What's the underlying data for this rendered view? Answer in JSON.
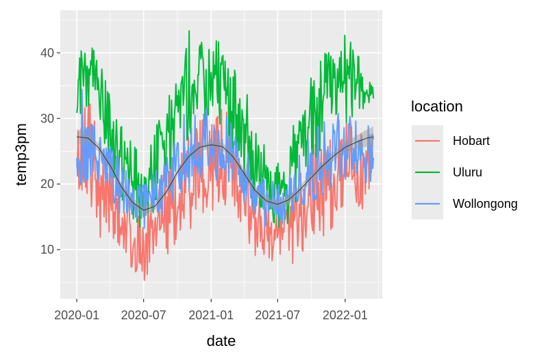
{
  "chart_data": {
    "type": "line",
    "xlabel": "date",
    "ylabel": "temp3pm",
    "x_ticks": [
      "2020-01",
      "2020-07",
      "2021-01",
      "2021-07",
      "2022-01"
    ],
    "y_ticks": [
      10,
      20,
      30,
      40
    ],
    "x_range": [
      "2019-11-17",
      "2022-04-12"
    ],
    "ylim": [
      2.5,
      46.5
    ],
    "grid": true,
    "legend": {
      "title": "location",
      "position": "right",
      "entries": [
        "Hobart",
        "Uluru",
        "Wollongong"
      ]
    },
    "series": [
      {
        "name": "Hobart",
        "color": "#F8766D",
        "x": [
          "2020-01-01",
          "2020-02-01",
          "2020-03-01",
          "2020-04-01",
          "2020-05-01",
          "2020-06-01",
          "2020-07-01",
          "2020-08-01",
          "2020-09-01",
          "2020-10-01",
          "2020-11-01",
          "2020-12-01",
          "2021-01-01",
          "2021-02-01",
          "2021-03-01",
          "2021-04-01",
          "2021-05-01",
          "2021-06-01",
          "2021-07-01",
          "2021-08-01",
          "2021-09-01",
          "2021-10-01",
          "2021-11-01",
          "2021-12-01",
          "2022-01-01",
          "2022-02-01",
          "2022-03-01"
        ],
        "values": [
          21,
          22,
          20,
          18,
          15,
          13,
          12,
          12,
          15,
          17,
          19,
          20,
          22,
          23,
          21,
          18,
          15,
          13,
          12,
          13,
          15,
          17,
          18,
          20,
          22,
          21,
          20
        ],
        "min": [
          17,
          14,
          12,
          10,
          9,
          7,
          5,
          7,
          9,
          11,
          12,
          15,
          16,
          15,
          13,
          11,
          9,
          8,
          8,
          7,
          9,
          10,
          11,
          13,
          15,
          15,
          17
        ],
        "max": [
          31,
          34,
          30,
          27,
          22,
          18,
          17,
          19,
          23,
          27,
          30,
          30,
          32,
          33,
          29,
          25,
          20,
          17,
          17,
          19,
          23,
          26,
          28,
          30,
          31,
          31,
          28
        ]
      },
      {
        "name": "Uluru",
        "color": "#00BA38",
        "x": [
          "2020-01-01",
          "2020-02-01",
          "2020-03-01",
          "2020-04-01",
          "2020-05-01",
          "2020-06-01",
          "2020-07-01",
          "2020-08-01",
          "2020-09-01",
          "2020-10-01",
          "2020-11-01",
          "2020-12-01",
          "2021-01-01",
          "2021-02-01",
          "2021-03-01",
          "2021-04-01",
          "2021-05-01",
          "2021-06-01",
          "2021-07-01",
          "2021-08-01",
          "2021-09-01",
          "2021-10-01",
          "2021-11-01",
          "2021-12-01",
          "2022-01-01",
          "2022-02-01",
          "2022-03-01"
        ],
        "values": [
          38,
          37,
          34,
          29,
          24,
          20,
          19,
          22,
          27,
          32,
          35,
          36,
          37,
          36,
          33,
          29,
          23,
          19,
          18,
          21,
          26,
          31,
          34,
          36,
          38,
          36,
          34
        ],
        "min": [
          28,
          30,
          26,
          21,
          16,
          14,
          13,
          15,
          19,
          24,
          27,
          28,
          28,
          27,
          24,
          20,
          15,
          13,
          12,
          14,
          18,
          22,
          26,
          28,
          29,
          30,
          32
        ],
        "max": [
          41,
          42,
          39,
          35,
          31,
          26,
          25,
          29,
          34,
          38,
          44,
          42,
          43,
          41,
          39,
          35,
          30,
          25,
          24,
          28,
          33,
          37,
          40,
          42,
          45,
          41,
          38
        ]
      },
      {
        "name": "Wollongong",
        "color": "#619CFF",
        "x": [
          "2020-01-01",
          "2020-02-01",
          "2020-03-01",
          "2020-04-01",
          "2020-05-01",
          "2020-06-01",
          "2020-07-01",
          "2020-08-01",
          "2020-09-01",
          "2020-10-01",
          "2020-11-01",
          "2020-12-01",
          "2021-01-01",
          "2021-02-01",
          "2021-03-01",
          "2021-04-01",
          "2021-05-01",
          "2021-06-01",
          "2021-07-01",
          "2021-08-01",
          "2021-09-01",
          "2021-10-01",
          "2021-11-01",
          "2021-12-01",
          "2022-01-01",
          "2022-02-01",
          "2022-03-01"
        ],
        "values": [
          25,
          25,
          24,
          22,
          19,
          17,
          17,
          18,
          20,
          22,
          23,
          24,
          25,
          25,
          24,
          21,
          19,
          17,
          16,
          18,
          19,
          21,
          23,
          24,
          25,
          25,
          24
        ],
        "min": [
          20,
          20,
          19,
          17,
          15,
          14,
          13,
          14,
          16,
          18,
          19,
          20,
          20,
          20,
          19,
          17,
          15,
          13,
          13,
          14,
          15,
          17,
          18,
          19,
          20,
          21,
          20
        ],
        "max": [
          38,
          31,
          29,
          26,
          23,
          21,
          20,
          22,
          25,
          29,
          36,
          31,
          32,
          31,
          29,
          26,
          23,
          21,
          20,
          22,
          25,
          28,
          30,
          31,
          31,
          30,
          29
        ]
      }
    ],
    "smooth": {
      "color": "#333333",
      "band_color": "#999999",
      "x": [
        "2020-01-01",
        "2020-02-01",
        "2020-03-01",
        "2020-04-01",
        "2020-05-01",
        "2020-06-01",
        "2020-07-01",
        "2020-08-01",
        "2020-09-01",
        "2020-10-01",
        "2020-11-01",
        "2020-12-01",
        "2021-01-01",
        "2021-02-01",
        "2021-03-01",
        "2021-04-01",
        "2021-05-01",
        "2021-06-01",
        "2021-07-01",
        "2021-08-01",
        "2021-09-01",
        "2021-10-01",
        "2021-11-01",
        "2021-12-01",
        "2022-01-01",
        "2022-02-01",
        "2022-03-01",
        "2022-03-20"
      ],
      "values": [
        27.2,
        27.0,
        25.5,
        22.8,
        19.6,
        17.2,
        16.0,
        16.6,
        18.8,
        21.8,
        24.2,
        25.6,
        26.0,
        25.7,
        24.2,
        21.6,
        19.0,
        17.4,
        16.9,
        17.6,
        19.2,
        21.0,
        22.8,
        24.3,
        25.6,
        26.4,
        27.0,
        27.2
      ],
      "band": [
        1.2,
        0.7,
        0.6,
        0.6,
        0.6,
        0.6,
        0.6,
        0.6,
        0.6,
        0.6,
        0.6,
        0.6,
        0.6,
        0.6,
        0.6,
        0.6,
        0.6,
        0.6,
        0.6,
        0.6,
        0.6,
        0.6,
        0.6,
        0.7,
        0.8,
        1.0,
        1.3,
        1.6
      ]
    }
  }
}
